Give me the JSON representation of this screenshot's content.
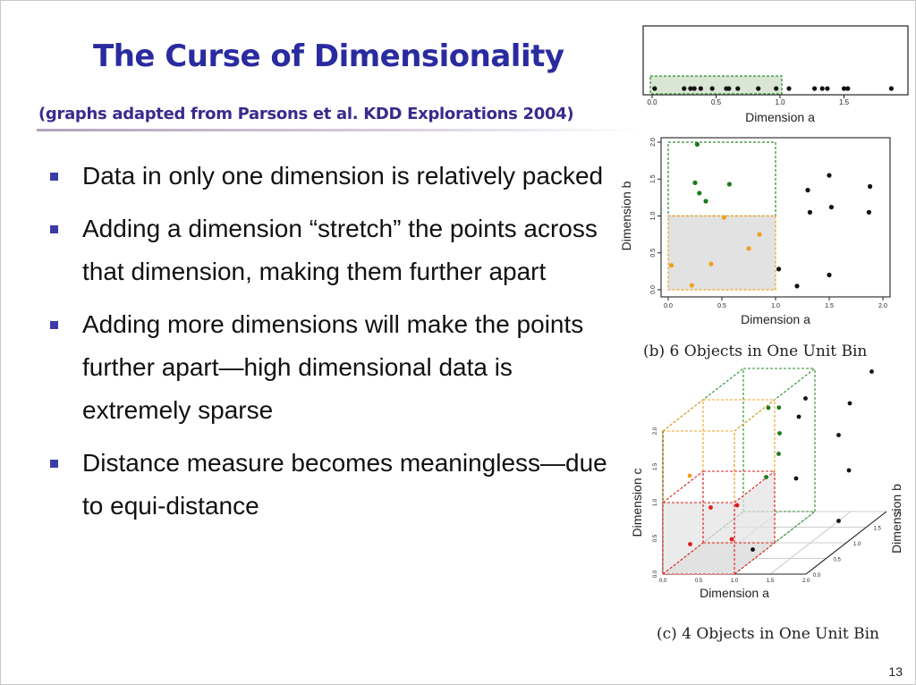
{
  "slide": {
    "title": "The Curse of Dimensionality",
    "subtitle": "(graphs adapted from Parsons et al. KDD Explorations 2004)",
    "page_number": "13"
  },
  "bullets": [
    "Data in only one dimension is relatively packed",
    "Adding a dimension “stretch” the points across that dimension, making them further apart",
    "Adding more dimensions will make the points further apart—high dimensional data is extremely sparse",
    "Distance measure becomes meaningless—due to equi-distance"
  ],
  "chart_data": [
    {
      "type": "scatter",
      "title": "",
      "xlabel": "Dimension a",
      "ylabel": "",
      "xlim": [
        0,
        2
      ],
      "x_ticks": [
        "0.0",
        "0.5",
        "1.0",
        "1.5"
      ],
      "bin": [
        0,
        1
      ],
      "points_x": [
        0.02,
        0.25,
        0.3,
        0.33,
        0.38,
        0.47,
        0.58,
        0.6,
        0.67,
        0.83,
        0.97,
        1.07,
        1.27,
        1.33,
        1.37,
        1.5,
        1.53,
        1.87
      ],
      "point_color": "#111111",
      "bin_color": "#2e8b2e",
      "bin_fill": "#d9e6d4"
    },
    {
      "type": "scatter",
      "title": "",
      "xlabel": "Dimension a",
      "ylabel": "Dimension b",
      "xlim": [
        0,
        2
      ],
      "ylim": [
        0,
        2
      ],
      "x_ticks": [
        "0.0",
        "0.5",
        "1.0",
        "1.5",
        "2.0"
      ],
      "y_ticks": [
        "0.0",
        "0.5",
        "1.0",
        "1.5",
        "2.0"
      ],
      "caption": "(b) 6 Objects in One Unit Bin",
      "series": [
        {
          "color": "#1b7a1b",
          "points": [
            [
              0.27,
              1.97
            ],
            [
              0.25,
              1.45
            ],
            [
              0.29,
              1.31
            ],
            [
              0.35,
              1.2
            ],
            [
              0.57,
              1.43
            ]
          ]
        },
        {
          "color": "#f0a020",
          "points": [
            [
              0.03,
              0.33
            ],
            [
              0.22,
              0.06
            ],
            [
              0.4,
              0.35
            ],
            [
              0.52,
              0.98
            ],
            [
              0.75,
              0.56
            ],
            [
              0.85,
              0.75
            ]
          ]
        },
        {
          "color": "#111111",
          "points": [
            [
              1.03,
              0.28
            ],
            [
              1.2,
              0.05
            ],
            [
              1.3,
              1.35
            ],
            [
              1.32,
              1.05
            ],
            [
              1.5,
              1.55
            ],
            [
              1.52,
              1.12
            ],
            [
              1.5,
              0.2
            ],
            [
              1.88,
              1.4
            ],
            [
              1.87,
              1.05
            ]
          ]
        }
      ],
      "bins": [
        {
          "x": [
            0,
            1
          ],
          "y": [
            1,
            2
          ],
          "color": "#2e8b2e",
          "fill": "none"
        },
        {
          "x": [
            0,
            1
          ],
          "y": [
            0,
            1
          ],
          "color": "#f0a020",
          "fill": "#e2e2e2"
        }
      ]
    },
    {
      "type": "scatter",
      "title": "",
      "xlabel": "Dimension a",
      "ylabel": "Dimension c",
      "zlabel": "Dimension b",
      "x_ticks": [
        "0.0",
        "0.5",
        "1.0",
        "1.5",
        "2.0"
      ],
      "y_ticks": [
        "0.0",
        "0.5",
        "1.0",
        "1.5",
        "2.0"
      ],
      "z_ticks": [
        "0.0",
        "0.5",
        "1.0",
        "1.5",
        "2.0"
      ],
      "caption": "(c) 4 Objects in One Unit Bin",
      "series": [
        {
          "color": "#e01b1b",
          "points": [
            [
              0.1,
              0.2,
              0.5
            ],
            [
              0.5,
              0.8,
              0.3
            ],
            [
              0.85,
              0.4,
              0.2
            ],
            [
              0.7,
              0.7,
              0.6
            ]
          ]
        },
        {
          "color": "#f0a020",
          "points": [
            [
              0.15,
              1.2,
              0.4
            ]
          ]
        },
        {
          "color": "#1b7a1b",
          "points": [
            [
              0.8,
              1.8,
              1.2
            ],
            [
              0.9,
              1.4,
              1.3
            ],
            [
              1.05,
              1.05,
              0.7
            ],
            [
              0.75,
              1.65,
              1.55
            ],
            [
              1.0,
              1.2,
              1.1
            ]
          ]
        },
        {
          "color": "#111111",
          "points": [
            [
              1.15,
              1.8,
              1.5
            ],
            [
              1.3,
              0.9,
              1.0
            ],
            [
              1.5,
              1.2,
              1.7
            ],
            [
              1.7,
              0.75,
              1.6
            ],
            [
              1.85,
              2.0,
              1.9
            ],
            [
              1.95,
              0.35,
              0.9
            ],
            [
              1.0,
              1.5,
              1.6
            ],
            [
              1.2,
              0.3,
              0.1
            ],
            [
              1.6,
              1.6,
              1.8
            ]
          ]
        }
      ]
    }
  ]
}
